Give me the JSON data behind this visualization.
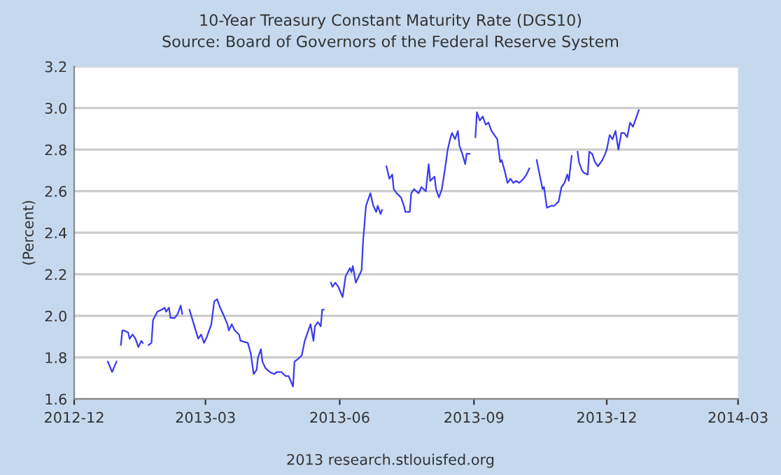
{
  "chart_data": {
    "type": "line",
    "title": "10-Year Treasury Constant Maturity Rate (DGS10)",
    "subtitle": "Source: Board of Governors of the Federal Reserve System",
    "ylabel": "(Percent)",
    "annotations": [
      "2013 research.stlouisfed.org"
    ],
    "xlim": [
      "2012-12-01",
      "2014-03-01"
    ],
    "xticks": [
      {
        "value": "2012-12-01",
        "label": "2012-12"
      },
      {
        "value": "2013-03-01",
        "label": "2013-03"
      },
      {
        "value": "2013-06-01",
        "label": "2013-06"
      },
      {
        "value": "2013-09-01",
        "label": "2013-09"
      },
      {
        "value": "2013-12-01",
        "label": "2013-12"
      },
      {
        "value": "2014-03-01",
        "label": "2014-03"
      }
    ],
    "ylim": [
      1.6,
      3.2
    ],
    "yticks": [
      {
        "value": 1.6,
        "label": "1.6"
      },
      {
        "value": 1.8,
        "label": "1.8"
      },
      {
        "value": 2.0,
        "label": "2.0"
      },
      {
        "value": 2.2,
        "label": "2.2"
      },
      {
        "value": 2.4,
        "label": "2.4"
      },
      {
        "value": 2.6,
        "label": "2.6"
      },
      {
        "value": 2.8,
        "label": "2.8"
      },
      {
        "value": 3.0,
        "label": "3.0"
      },
      {
        "value": 3.2,
        "label": "3.2"
      }
    ],
    "grid": "y",
    "marker": "none",
    "line_style": "solid",
    "series": [
      {
        "color": "#3a3af0",
        "x": [
          "2012-12-24",
          "2012-12-27",
          "2012-12-30",
          "2012-12-31",
          "2013-01-02",
          "2013-01-03",
          "2013-01-04",
          "2013-01-07",
          "2013-01-08",
          "2013-01-10",
          "2013-01-12",
          "2013-01-14",
          "2013-01-16",
          "2013-01-17",
          "2013-01-19",
          "2013-01-21",
          "2013-01-23",
          "2013-01-24",
          "2013-01-27",
          "2013-01-30",
          "2013-02-01",
          "2013-02-02",
          "2013-02-04",
          "2013-02-05",
          "2013-02-08",
          "2013-02-10",
          "2013-02-12",
          "2013-02-13",
          "2013-02-15",
          "2013-02-18",
          "2013-02-21",
          "2013-02-24",
          "2013-02-26",
          "2013-02-28",
          "2013-03-02",
          "2013-03-05",
          "2013-03-07",
          "2013-03-09",
          "2013-03-11",
          "2013-03-13",
          "2013-03-16",
          "2013-03-17",
          "2013-03-19",
          "2013-03-21",
          "2013-03-24",
          "2013-03-25",
          "2013-03-30",
          "2013-04-01",
          "2013-04-03",
          "2013-04-05",
          "2013-04-06",
          "2013-04-08",
          "2013-04-09",
          "2013-04-11",
          "2013-04-14",
          "2013-04-17",
          "2013-04-19",
          "2013-04-22",
          "2013-04-25",
          "2013-04-27",
          "2013-04-30",
          "2013-05-01",
          "2013-05-03",
          "2013-05-06",
          "2013-05-08",
          "2013-05-11",
          "2013-05-12",
          "2013-05-14",
          "2013-05-15",
          "2013-05-17",
          "2013-05-19",
          "2013-05-20",
          "2013-05-21",
          "2013-05-23",
          "2013-05-26",
          "2013-05-27",
          "2013-05-29",
          "2013-05-31",
          "2013-06-03",
          "2013-06-05",
          "2013-06-08",
          "2013-06-09",
          "2013-06-10",
          "2013-06-12",
          "2013-06-14",
          "2013-06-16",
          "2013-06-17",
          "2013-06-19",
          "2013-06-20",
          "2013-06-22",
          "2013-06-24",
          "2013-06-26",
          "2013-06-27",
          "2013-06-29",
          "2013-06-30",
          "2013-07-02",
          "2013-07-03",
          "2013-07-05",
          "2013-07-07",
          "2013-07-08",
          "2013-07-10",
          "2013-07-13",
          "2013-07-15",
          "2013-07-16",
          "2013-07-19",
          "2013-07-20",
          "2013-07-22",
          "2013-07-25",
          "2013-07-27",
          "2013-07-30",
          "2013-08-01",
          "2013-08-02",
          "2013-08-05",
          "2013-08-06",
          "2013-08-08",
          "2013-08-10",
          "2013-08-12",
          "2013-08-14",
          "2013-08-16",
          "2013-08-17",
          "2013-08-19",
          "2013-08-21",
          "2013-08-22",
          "2013-08-24",
          "2013-08-26",
          "2013-08-27",
          "2013-08-29",
          "2013-08-31",
          "2013-09-02",
          "2013-09-03",
          "2013-09-05",
          "2013-09-07",
          "2013-09-09",
          "2013-09-11",
          "2013-09-13",
          "2013-09-15",
          "2013-09-17",
          "2013-09-19",
          "2013-09-20",
          "2013-09-22",
          "2013-09-24",
          "2013-09-26",
          "2013-09-28",
          "2013-09-30",
          "2013-10-02",
          "2013-10-05",
          "2013-10-07",
          "2013-10-09",
          "2013-10-11",
          "2013-10-14",
          "2013-10-16",
          "2013-10-18",
          "2013-10-19",
          "2013-10-21",
          "2013-10-24",
          "2013-10-26",
          "2013-10-29",
          "2013-10-31",
          "2013-11-02",
          "2013-11-04",
          "2013-11-05",
          "2013-11-07",
          "2013-11-09",
          "2013-11-11",
          "2013-11-12",
          "2013-11-14",
          "2013-11-15",
          "2013-11-18",
          "2013-11-19",
          "2013-11-21",
          "2013-11-23",
          "2013-11-25",
          "2013-11-28",
          "2013-11-30",
          "2013-12-01",
          "2013-12-03",
          "2013-12-05",
          "2013-12-07",
          "2013-12-09",
          "2013-12-11",
          "2013-12-13",
          "2013-12-15",
          "2013-12-17",
          "2013-12-19",
          "2013-12-21",
          "2013-12-23"
        ],
        "values": [
          1.78,
          1.73,
          1.78,
          null,
          1.86,
          1.93,
          1.93,
          1.92,
          1.89,
          1.91,
          1.89,
          1.85,
          1.88,
          1.87,
          null,
          1.86,
          1.87,
          1.98,
          2.02,
          2.03,
          2.04,
          2.02,
          2.04,
          1.99,
          1.99,
          2.01,
          2.05,
          2.01,
          null,
          2.03,
          1.96,
          1.89,
          1.91,
          1.87,
          1.9,
          1.96,
          2.07,
          2.08,
          2.04,
          2.01,
          1.96,
          1.93,
          1.96,
          1.93,
          1.91,
          1.88,
          1.87,
          1.82,
          1.72,
          1.74,
          1.8,
          1.84,
          1.78,
          1.75,
          1.73,
          1.72,
          1.73,
          1.73,
          1.71,
          1.71,
          1.66,
          1.78,
          1.79,
          1.81,
          1.88,
          1.94,
          1.96,
          1.88,
          1.95,
          1.97,
          1.95,
          2.03,
          2.03,
          null,
          2.16,
          2.14,
          2.16,
          2.14,
          2.09,
          2.19,
          2.23,
          2.21,
          2.24,
          2.16,
          2.19,
          2.22,
          2.36,
          2.53,
          2.55,
          2.59,
          2.53,
          2.5,
          2.53,
          2.49,
          2.51,
          null,
          2.72,
          2.66,
          2.68,
          2.61,
          2.59,
          2.57,
          2.53,
          2.5,
          2.5,
          2.59,
          2.61,
          2.59,
          2.62,
          2.6,
          2.73,
          2.65,
          2.67,
          2.61,
          2.57,
          2.61,
          2.7,
          2.8,
          2.86,
          2.88,
          2.85,
          2.89,
          2.82,
          2.78,
          2.73,
          2.78,
          2.78,
          null,
          2.86,
          2.98,
          2.94,
          2.96,
          2.92,
          2.93,
          2.89,
          2.87,
          2.85,
          2.74,
          2.75,
          2.7,
          2.64,
          2.66,
          2.64,
          2.65,
          2.64,
          2.66,
          2.68,
          2.71,
          null,
          2.75,
          2.68,
          2.61,
          2.62,
          2.52,
          2.53,
          2.53,
          2.55,
          2.62,
          2.64,
          2.68,
          2.65,
          2.77,
          null,
          2.79,
          2.74,
          2.7,
          2.69,
          2.68,
          2.79,
          2.78,
          2.74,
          2.72,
          2.75,
          2.78,
          2.8,
          2.87,
          2.85,
          2.89,
          2.8,
          2.88,
          2.88,
          2.86,
          2.93,
          2.91,
          2.95,
          2.99
        ]
      }
    ]
  }
}
